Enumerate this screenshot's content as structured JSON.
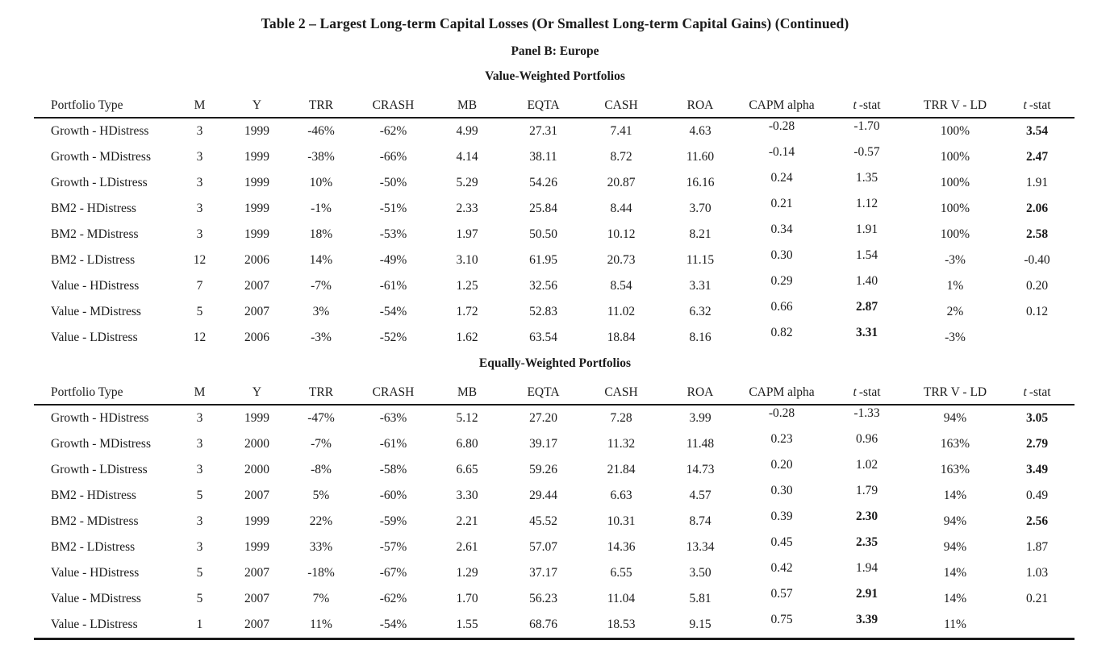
{
  "document": {
    "title": "Table 2 – Largest Long-term Capital Losses (Or Smallest Long-term Capital Gains) (Continued)",
    "panel_title": "Panel B: Europe"
  },
  "table": {
    "columns": [
      {
        "key": "portfolio-type",
        "label": "Portfolio Type"
      },
      {
        "key": "m",
        "label": "M"
      },
      {
        "key": "y",
        "label": "Y"
      },
      {
        "key": "trr",
        "label": "TRR"
      },
      {
        "key": "crash",
        "label": "CRASH"
      },
      {
        "key": "mb",
        "label": "MB"
      },
      {
        "key": "eqta",
        "label": "EQTA"
      },
      {
        "key": "cash",
        "label": "CASH"
      },
      {
        "key": "roa",
        "label": "ROA"
      },
      {
        "key": "capm-alpha",
        "label": "CAPM alpha"
      },
      {
        "key": "t-stat",
        "label": "-stat",
        "italic_prefix": "t"
      },
      {
        "key": "trr-v-ld",
        "label": "TRR V - LD"
      },
      {
        "key": "t-stat-2",
        "label": "-stat",
        "italic_prefix": "t"
      }
    ],
    "raised_columns": [
      9,
      10
    ],
    "sections": [
      {
        "heading": "Value-Weighted Portfolios",
        "rows": [
          {
            "cells": [
              "Growth - HDistress",
              "3",
              "1999",
              "-46%",
              "-62%",
              "4.99",
              "27.31",
              "7.41",
              "4.63",
              "-0.28",
              "-1.70",
              "100%",
              "3.54"
            ],
            "bold": [
              12
            ]
          },
          {
            "cells": [
              "Growth - MDistress",
              "3",
              "1999",
              "-38%",
              "-66%",
              "4.14",
              "38.11",
              "8.72",
              "11.60",
              "-0.14",
              "-0.57",
              "100%",
              "2.47"
            ],
            "bold": [
              12
            ]
          },
          {
            "cells": [
              "Growth - LDistress",
              "3",
              "1999",
              "10%",
              "-50%",
              "5.29",
              "54.26",
              "20.87",
              "16.16",
              "0.24",
              "1.35",
              "100%",
              "1.91"
            ],
            "bold": []
          },
          {
            "cells": [
              "BM2 - HDistress",
              "3",
              "1999",
              "-1%",
              "-51%",
              "2.33",
              "25.84",
              "8.44",
              "3.70",
              "0.21",
              "1.12",
              "100%",
              "2.06"
            ],
            "bold": [
              12
            ]
          },
          {
            "cells": [
              "BM2 - MDistress",
              "3",
              "1999",
              "18%",
              "-53%",
              "1.97",
              "50.50",
              "10.12",
              "8.21",
              "0.34",
              "1.91",
              "100%",
              "2.58"
            ],
            "bold": [
              12
            ]
          },
          {
            "cells": [
              "BM2 - LDistress",
              "12",
              "2006",
              "14%",
              "-49%",
              "3.10",
              "61.95",
              "20.73",
              "11.15",
              "0.30",
              "1.54",
              "-3%",
              "-0.40"
            ],
            "bold": []
          },
          {
            "cells": [
              "Value - HDistress",
              "7",
              "2007",
              "-7%",
              "-61%",
              "1.25",
              "32.56",
              "8.54",
              "3.31",
              "0.29",
              "1.40",
              "1%",
              "0.20"
            ],
            "bold": []
          },
          {
            "cells": [
              "Value - MDistress",
              "5",
              "2007",
              "3%",
              "-54%",
              "1.72",
              "52.83",
              "11.02",
              "6.32",
              "0.66",
              "2.87",
              "2%",
              "0.12"
            ],
            "bold": [
              10
            ]
          },
          {
            "cells": [
              "Value - LDistress",
              "12",
              "2006",
              "-3%",
              "-52%",
              "1.62",
              "63.54",
              "18.84",
              "8.16",
              "0.82",
              "3.31",
              "-3%",
              ""
            ],
            "bold": [
              10
            ]
          }
        ]
      },
      {
        "heading": "Equally-Weighted Portfolios",
        "rows": [
          {
            "cells": [
              "Growth - HDistress",
              "3",
              "1999",
              "-47%",
              "-63%",
              "5.12",
              "27.20",
              "7.28",
              "3.99",
              "-0.28",
              "-1.33",
              "94%",
              "3.05"
            ],
            "bold": [
              12
            ]
          },
          {
            "cells": [
              "Growth - MDistress",
              "3",
              "2000",
              "-7%",
              "-61%",
              "6.80",
              "39.17",
              "11.32",
              "11.48",
              "0.23",
              "0.96",
              "163%",
              "2.79"
            ],
            "bold": [
              12
            ]
          },
          {
            "cells": [
              "Growth - LDistress",
              "3",
              "2000",
              "-8%",
              "-58%",
              "6.65",
              "59.26",
              "21.84",
              "14.73",
              "0.20",
              "1.02",
              "163%",
              "3.49"
            ],
            "bold": [
              12
            ]
          },
          {
            "cells": [
              "BM2 - HDistress",
              "5",
              "2007",
              "5%",
              "-60%",
              "3.30",
              "29.44",
              "6.63",
              "4.57",
              "0.30",
              "1.79",
              "14%",
              "0.49"
            ],
            "bold": []
          },
          {
            "cells": [
              "BM2 - MDistress",
              "3",
              "1999",
              "22%",
              "-59%",
              "2.21",
              "45.52",
              "10.31",
              "8.74",
              "0.39",
              "2.30",
              "94%",
              "2.56"
            ],
            "bold": [
              10,
              12
            ]
          },
          {
            "cells": [
              "BM2 - LDistress",
              "3",
              "1999",
              "33%",
              "-57%",
              "2.61",
              "57.07",
              "14.36",
              "13.34",
              "0.45",
              "2.35",
              "94%",
              "1.87"
            ],
            "bold": [
              10
            ]
          },
          {
            "cells": [
              "Value - HDistress",
              "5",
              "2007",
              "-18%",
              "-67%",
              "1.29",
              "37.17",
              "6.55",
              "3.50",
              "0.42",
              "1.94",
              "14%",
              "1.03"
            ],
            "bold": []
          },
          {
            "cells": [
              "Value - MDistress",
              "5",
              "2007",
              "7%",
              "-62%",
              "1.70",
              "56.23",
              "11.04",
              "5.81",
              "0.57",
              "2.91",
              "14%",
              "0.21"
            ],
            "bold": [
              10
            ]
          },
          {
            "cells": [
              "Value - LDistress",
              "1",
              "2007",
              "11%",
              "-54%",
              "1.55",
              "68.76",
              "18.53",
              "9.15",
              "0.75",
              "3.39",
              "11%",
              ""
            ],
            "bold": [
              10
            ]
          }
        ]
      }
    ]
  }
}
